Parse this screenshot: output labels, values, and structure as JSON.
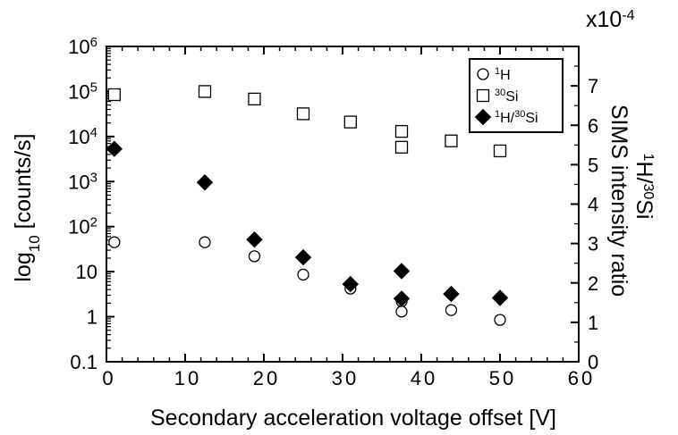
{
  "chart_data": {
    "type": "scatter",
    "xlabel": "Secondary acceleration voltage offset [V]",
    "ylabel_left": {
      "base": "log",
      "sub": "10",
      "rest": " [counts/s]"
    },
    "ylabel_right": {
      "line1_parts": [
        {
          "t": "1",
          "sup": true
        },
        {
          "t": "H/"
        },
        {
          "t": "30",
          "sup": true
        },
        {
          "t": "Si"
        }
      ],
      "line2": "SIMS intensity ratio"
    },
    "right_multiplier": {
      "base": "x10",
      "exp": "-4"
    },
    "xlim": [
      0,
      60
    ],
    "xticks": [
      "0",
      "10",
      "20",
      "30",
      "40",
      "50",
      "60"
    ],
    "ylim_left_log10": [
      -1,
      6
    ],
    "yticks_left": [
      {
        "label": "0.1"
      },
      {
        "label": "1"
      },
      {
        "label": "10"
      },
      {
        "label": "10",
        "exp": "2"
      },
      {
        "label": "10",
        "exp": "3"
      },
      {
        "label": "10",
        "exp": "4"
      },
      {
        "label": "10",
        "exp": "5"
      },
      {
        "label": "10",
        "exp": "6"
      }
    ],
    "ylim_right": [
      0,
      8
    ],
    "yticks_right": [
      "0",
      "1",
      "2",
      "3",
      "4",
      "5",
      "6",
      "7"
    ],
    "legend_position": "top-right",
    "series": [
      {
        "name": "1H",
        "name_parts": [
          {
            "t": "1",
            "sup": true
          },
          {
            "t": "H"
          }
        ],
        "marker": "open-circle",
        "axis": "left",
        "x": [
          1,
          12.5,
          18.8,
          25,
          31,
          37.5,
          37.5,
          43.8,
          50
        ],
        "y": [
          45,
          45,
          22,
          8.6,
          4.2,
          2.2,
          1.3,
          1.4,
          0.85
        ]
      },
      {
        "name": "30Si",
        "name_parts": [
          {
            "t": "30",
            "sup": true
          },
          {
            "t": "Si"
          }
        ],
        "marker": "open-square",
        "axis": "left",
        "x": [
          1,
          12.5,
          18.8,
          25,
          31,
          37.5,
          37.5,
          43.8,
          50
        ],
        "y": [
          85000,
          100000,
          68000,
          32000,
          21000,
          13000,
          5800,
          8000,
          4800
        ]
      },
      {
        "name": "1H/30Si",
        "name_parts": [
          {
            "t": "1",
            "sup": true
          },
          {
            "t": "H/"
          },
          {
            "t": "30",
            "sup": true
          },
          {
            "t": "Si"
          }
        ],
        "marker": "filled-diamond",
        "axis": "right",
        "x": [
          1,
          12.5,
          18.8,
          25,
          31,
          37.5,
          37.5,
          43.8,
          50
        ],
        "y": [
          5.4,
          4.55,
          3.1,
          2.65,
          1.97,
          2.3,
          1.6,
          1.72,
          1.62
        ]
      }
    ]
  }
}
